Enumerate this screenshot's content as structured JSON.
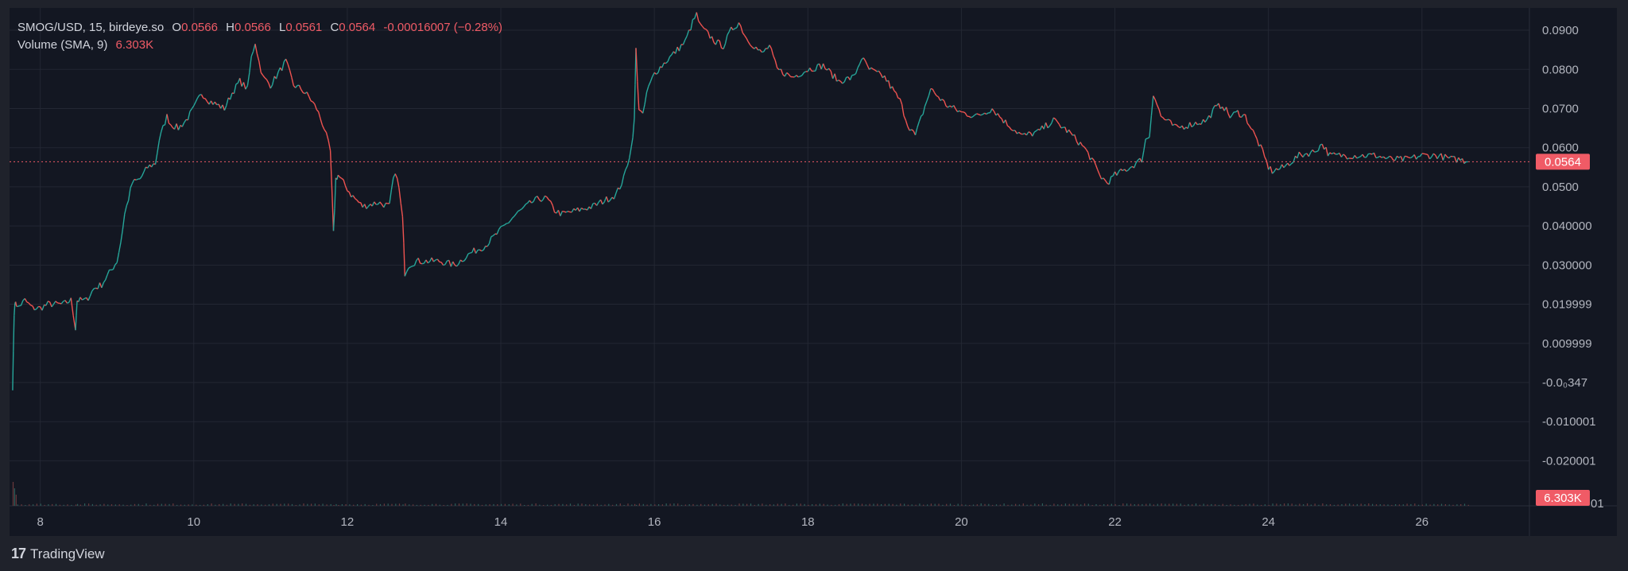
{
  "legend": {
    "symbol": "SMOG/USD, 15, birdeye.so",
    "o_label": "O",
    "o_value": "0.0566",
    "h_label": "H",
    "h_value": "0.0566",
    "l_label": "L",
    "l_value": "0.0561",
    "c_label": "C",
    "c_value": "0.0564",
    "change": "-0.00016007 (−0.28%)",
    "volume_label": "Volume (SMA, 9)",
    "volume_value": "6.303K"
  },
  "branding": {
    "logo": "17",
    "name": "TradingView"
  },
  "colors": {
    "up": "#26a69a",
    "down": "#ef5350",
    "price_tag": "#f05b66",
    "background": "#131722",
    "grid": "#262a34"
  },
  "chart_data": {
    "type": "line",
    "x_ticks": [
      "8",
      "10",
      "12",
      "14",
      "16",
      "18",
      "20",
      "22",
      "24",
      "26"
    ],
    "x_tick_values": [
      8,
      10,
      12,
      14,
      16,
      18,
      20,
      22,
      24,
      26
    ],
    "y_ticks": [
      {
        "value": 0.09,
        "label": "0.0900"
      },
      {
        "value": 0.08,
        "label": "0.0800"
      },
      {
        "value": 0.07,
        "label": "0.0700"
      },
      {
        "value": 0.06,
        "label": "0.0600"
      },
      {
        "value": 0.05,
        "label": "0.0500"
      },
      {
        "value": 0.04,
        "label": "0.040000"
      },
      {
        "value": 0.03,
        "label": "0.030000"
      },
      {
        "value": 0.02,
        "label": "0.019999"
      },
      {
        "value": 0.01,
        "label": "0.009999"
      },
      {
        "value": 0.0,
        "label": "-0.0₀347"
      },
      {
        "value": -0.01,
        "label": "-0.010001"
      },
      {
        "value": -0.02,
        "label": "-0.020001"
      }
    ],
    "xlim": [
      7.6,
      27.4
    ],
    "ylim": [
      -0.0315,
      0.0957
    ],
    "current_price": 0.0564,
    "current_price_label": "0.0564",
    "volume_tag_label": "6.303K",
    "volume_axis_fragment": "01",
    "series": [
      {
        "x": [
          7.64,
          7.66,
          7.68,
          7.7,
          7.75,
          7.8,
          7.9,
          8.0,
          8.1,
          8.2,
          8.3,
          8.4,
          8.46,
          8.48,
          8.52,
          8.6,
          8.7,
          8.8,
          8.9,
          9.0,
          9.05,
          9.1,
          9.15,
          9.2,
          9.3,
          9.4,
          9.5,
          9.55,
          9.6,
          9.65,
          9.7,
          9.8,
          9.9,
          10.0,
          10.1,
          10.2,
          10.3,
          10.4,
          10.5,
          10.6,
          10.7,
          10.75,
          10.8,
          10.85,
          10.9,
          11.0,
          11.1,
          11.2,
          11.3,
          11.4,
          11.5,
          11.6,
          11.7,
          11.78,
          11.82,
          11.85,
          11.88,
          11.95,
          12.05,
          12.2,
          12.4,
          12.55,
          12.6,
          12.65,
          12.72,
          12.75,
          12.8,
          12.9,
          13.0,
          13.2,
          13.4,
          13.6,
          13.8,
          14.0,
          14.2,
          14.4,
          14.5,
          14.6,
          14.7,
          14.8,
          15.0,
          15.2,
          15.4,
          15.5,
          15.6,
          15.7,
          15.74,
          15.76,
          15.8,
          15.85,
          15.9,
          16.0,
          16.2,
          16.4,
          16.5,
          16.55,
          16.6,
          16.7,
          16.8,
          16.9,
          17.0,
          17.1,
          17.2,
          17.3,
          17.4,
          17.5,
          17.6,
          17.8,
          18.0,
          18.2,
          18.4,
          18.6,
          18.7,
          18.8,
          18.9,
          19.0,
          19.2,
          19.3,
          19.4,
          19.5,
          19.6,
          19.8,
          20.0,
          20.2,
          20.4,
          20.6,
          20.8,
          21.0,
          21.2,
          21.4,
          21.6,
          21.7,
          21.8,
          21.9,
          22.0,
          22.2,
          22.35,
          22.4,
          22.45,
          22.5,
          22.6,
          22.8,
          23.0,
          23.2,
          23.3,
          23.4,
          23.5,
          23.6,
          23.7,
          23.8,
          23.9,
          24.0,
          24.05,
          24.2,
          24.4,
          24.6,
          24.7,
          24.8,
          25.0,
          25.2,
          25.4,
          25.6,
          25.8,
          26.0,
          26.2,
          26.4,
          26.5,
          26.6
        ],
        "y": [
          -0.002,
          0.018,
          0.021,
          0.019,
          0.02,
          0.021,
          0.019,
          0.019,
          0.02,
          0.02,
          0.02,
          0.021,
          0.014,
          0.021,
          0.021,
          0.021,
          0.024,
          0.025,
          0.028,
          0.031,
          0.036,
          0.043,
          0.047,
          0.051,
          0.052,
          0.055,
          0.056,
          0.062,
          0.065,
          0.068,
          0.066,
          0.065,
          0.067,
          0.07,
          0.074,
          0.072,
          0.071,
          0.07,
          0.074,
          0.077,
          0.075,
          0.083,
          0.087,
          0.082,
          0.078,
          0.076,
          0.079,
          0.082,
          0.076,
          0.075,
          0.073,
          0.07,
          0.065,
          0.059,
          0.038,
          0.052,
          0.053,
          0.051,
          0.048,
          0.045,
          0.046,
          0.045,
          0.052,
          0.053,
          0.042,
          0.028,
          0.03,
          0.031,
          0.031,
          0.031,
          0.03,
          0.033,
          0.035,
          0.039,
          0.043,
          0.046,
          0.047,
          0.047,
          0.044,
          0.043,
          0.044,
          0.045,
          0.047,
          0.048,
          0.052,
          0.06,
          0.067,
          0.085,
          0.07,
          0.068,
          0.074,
          0.079,
          0.083,
          0.087,
          0.092,
          0.094,
          0.091,
          0.089,
          0.087,
          0.086,
          0.09,
          0.092,
          0.088,
          0.086,
          0.084,
          0.086,
          0.08,
          0.078,
          0.08,
          0.081,
          0.077,
          0.078,
          0.083,
          0.08,
          0.079,
          0.078,
          0.072,
          0.066,
          0.063,
          0.069,
          0.075,
          0.071,
          0.069,
          0.068,
          0.07,
          0.066,
          0.063,
          0.064,
          0.067,
          0.064,
          0.06,
          0.057,
          0.053,
          0.051,
          0.053,
          0.055,
          0.057,
          0.062,
          0.063,
          0.074,
          0.068,
          0.065,
          0.066,
          0.067,
          0.07,
          0.071,
          0.068,
          0.069,
          0.068,
          0.064,
          0.06,
          0.055,
          0.054,
          0.055,
          0.058,
          0.059,
          0.061,
          0.058,
          0.058,
          0.058,
          0.058,
          0.057,
          0.057,
          0.058,
          0.058,
          0.057,
          0.057,
          0.0564
        ]
      }
    ]
  }
}
